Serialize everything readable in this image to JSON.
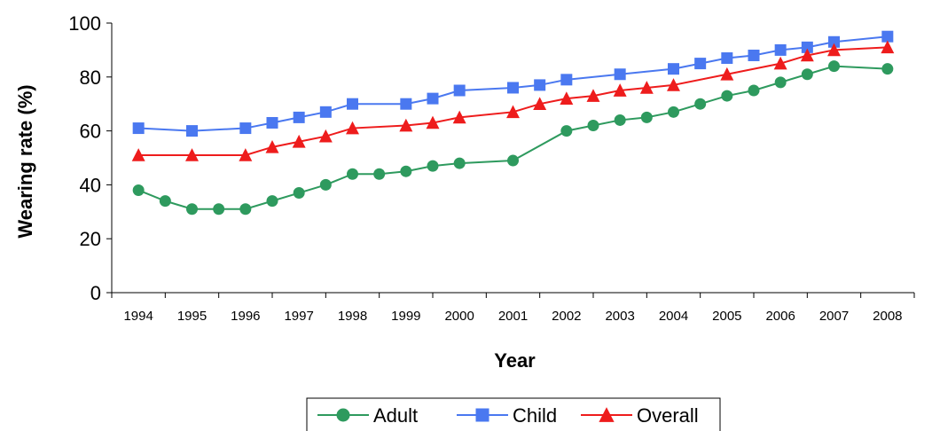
{
  "chart_data": {
    "type": "line",
    "title": "",
    "xlabel": "Year",
    "ylabel": "Wearing rate (%)",
    "categories": [
      "1994",
      "1995",
      "1996",
      "1997",
      "1998",
      "1999",
      "2000",
      "2001",
      "2002",
      "2003",
      "2004",
      "2005",
      "2006",
      "2007",
      "2008"
    ],
    "ylim": [
      0,
      100
    ],
    "yticks": [
      "0",
      "20",
      "40",
      "60",
      "80",
      "100"
    ],
    "grid": false,
    "legend_position": "bottom",
    "series": [
      {
        "name": "Adult",
        "color": "#2e9a5e",
        "marker": "circle",
        "points": [
          {
            "x": 0.0,
            "y": 38
          },
          {
            "x": 0.5,
            "y": 34
          },
          {
            "x": 1.0,
            "y": 31
          },
          {
            "x": 1.5,
            "y": 31
          },
          {
            "x": 2.0,
            "y": 31
          },
          {
            "x": 2.5,
            "y": 34
          },
          {
            "x": 3.0,
            "y": 37
          },
          {
            "x": 3.5,
            "y": 40
          },
          {
            "x": 4.0,
            "y": 44
          },
          {
            "x": 4.5,
            "y": 44
          },
          {
            "x": 5.0,
            "y": 45
          },
          {
            "x": 5.5,
            "y": 47
          },
          {
            "x": 6.0,
            "y": 48
          },
          {
            "x": 7.0,
            "y": 49
          },
          {
            "x": 8.0,
            "y": 60
          },
          {
            "x": 8.5,
            "y": 62
          },
          {
            "x": 9.0,
            "y": 64
          },
          {
            "x": 9.5,
            "y": 65
          },
          {
            "x": 10.0,
            "y": 67
          },
          {
            "x": 10.5,
            "y": 70
          },
          {
            "x": 11.0,
            "y": 73
          },
          {
            "x": 11.5,
            "y": 75
          },
          {
            "x": 12.0,
            "y": 78
          },
          {
            "x": 12.5,
            "y": 81
          },
          {
            "x": 13.0,
            "y": 84
          },
          {
            "x": 14.0,
            "y": 83
          }
        ]
      },
      {
        "name": "Child",
        "color": "#4a78f0",
        "marker": "square",
        "points": [
          {
            "x": 0.0,
            "y": 61
          },
          {
            "x": 1.0,
            "y": 60
          },
          {
            "x": 2.0,
            "y": 61
          },
          {
            "x": 2.5,
            "y": 63
          },
          {
            "x": 3.0,
            "y": 65
          },
          {
            "x": 3.5,
            "y": 67
          },
          {
            "x": 4.0,
            "y": 70
          },
          {
            "x": 5.0,
            "y": 70
          },
          {
            "x": 5.5,
            "y": 72
          },
          {
            "x": 6.0,
            "y": 75
          },
          {
            "x": 7.0,
            "y": 76
          },
          {
            "x": 7.5,
            "y": 77
          },
          {
            "x": 8.0,
            "y": 79
          },
          {
            "x": 9.0,
            "y": 81
          },
          {
            "x": 10.0,
            "y": 83
          },
          {
            "x": 10.5,
            "y": 85
          },
          {
            "x": 11.0,
            "y": 87
          },
          {
            "x": 11.5,
            "y": 88
          },
          {
            "x": 12.0,
            "y": 90
          },
          {
            "x": 12.5,
            "y": 91
          },
          {
            "x": 13.0,
            "y": 93
          },
          {
            "x": 14.0,
            "y": 95
          }
        ]
      },
      {
        "name": "Overall",
        "color": "#ee1c1c",
        "marker": "triangle",
        "points": [
          {
            "x": 0.0,
            "y": 51
          },
          {
            "x": 1.0,
            "y": 51
          },
          {
            "x": 2.0,
            "y": 51
          },
          {
            "x": 2.5,
            "y": 54
          },
          {
            "x": 3.0,
            "y": 56
          },
          {
            "x": 3.5,
            "y": 58
          },
          {
            "x": 4.0,
            "y": 61
          },
          {
            "x": 5.0,
            "y": 62
          },
          {
            "x": 5.5,
            "y": 63
          },
          {
            "x": 6.0,
            "y": 65
          },
          {
            "x": 7.0,
            "y": 67
          },
          {
            "x": 7.5,
            "y": 70
          },
          {
            "x": 8.0,
            "y": 72
          },
          {
            "x": 8.5,
            "y": 73
          },
          {
            "x": 9.0,
            "y": 75
          },
          {
            "x": 9.5,
            "y": 76
          },
          {
            "x": 10.0,
            "y": 77
          },
          {
            "x": 11.0,
            "y": 81
          },
          {
            "x": 12.0,
            "y": 85
          },
          {
            "x": 12.5,
            "y": 88
          },
          {
            "x": 13.0,
            "y": 90
          },
          {
            "x": 14.0,
            "y": 91
          }
        ]
      }
    ]
  }
}
